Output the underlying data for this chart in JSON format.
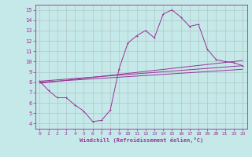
{
  "xlabel": "Windchill (Refroidissement éolien,°C)",
  "bg_color": "#c5e8e8",
  "grid_color": "#b0c8c8",
  "line_color": "#993399",
  "spine_color": "#993399",
  "xlim": [
    -0.5,
    23.5
  ],
  "ylim": [
    3.5,
    15.5
  ],
  "xticks": [
    0,
    1,
    2,
    3,
    4,
    5,
    6,
    7,
    8,
    9,
    10,
    11,
    12,
    13,
    14,
    15,
    16,
    17,
    18,
    19,
    20,
    21,
    22,
    23
  ],
  "yticks": [
    4,
    5,
    6,
    7,
    8,
    9,
    10,
    11,
    12,
    13,
    14,
    15
  ],
  "curve1_x": [
    0,
    1,
    2,
    3,
    4,
    5,
    6,
    7,
    8,
    9,
    10,
    11,
    12,
    13,
    14,
    15,
    16,
    17,
    18,
    19,
    20,
    21,
    22,
    23
  ],
  "curve1_y": [
    8.1,
    7.2,
    6.5,
    6.5,
    5.8,
    5.2,
    4.2,
    4.3,
    5.3,
    9.3,
    11.8,
    12.5,
    13.0,
    12.3,
    14.6,
    15.0,
    14.3,
    13.4,
    13.6,
    11.2,
    10.2,
    10.0,
    9.9,
    9.6
  ],
  "line1_x": [
    0,
    23
  ],
  "line1_y": [
    8.1,
    9.6
  ],
  "line2_x": [
    0,
    23
  ],
  "line2_y": [
    7.9,
    10.1
  ],
  "line3_x": [
    0,
    23
  ],
  "line3_y": [
    8.0,
    9.25
  ]
}
